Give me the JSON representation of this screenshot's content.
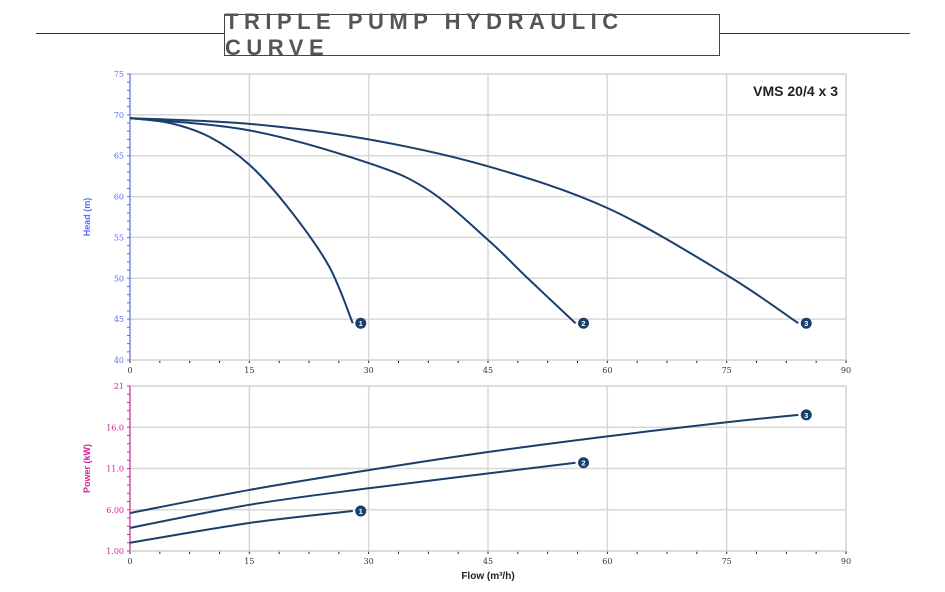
{
  "title": "TRIPLE PUMP HYDRAULIC CURVE",
  "colors": {
    "curve": "#1a3f6b",
    "head_axis": "#5b6cf0",
    "power_axis": "#d4209a",
    "grid": "#d8d8d8"
  },
  "chart_data": [
    {
      "type": "line",
      "title": "VMS 20/4 x 3",
      "xlabel": "",
      "ylabel": "Head (m)",
      "xlim": [
        0,
        90
      ],
      "ylim": [
        40,
        75
      ],
      "xticks": [
        "0",
        "15",
        "30",
        "45",
        "60",
        "75",
        "90"
      ],
      "yticks": [
        "40",
        "45",
        "50",
        "55",
        "60",
        "65",
        "70",
        "75"
      ],
      "grid": true,
      "series": [
        {
          "name": "1",
          "x": [
            0,
            5,
            10,
            15,
            20,
            25,
            28
          ],
          "y": [
            69.6,
            69.0,
            67.3,
            63.9,
            58.5,
            51.5,
            44.5
          ]
        },
        {
          "name": "2",
          "x": [
            0,
            15,
            30,
            37.5,
            45,
            50,
            56
          ],
          "y": [
            69.6,
            68.1,
            64.1,
            60.8,
            54.7,
            50.0,
            44.5
          ]
        },
        {
          "name": "3",
          "x": [
            0,
            15,
            30,
            45,
            60,
            75,
            84
          ],
          "y": [
            69.6,
            68.9,
            67.0,
            63.7,
            58.6,
            50.4,
            44.5
          ]
        }
      ]
    },
    {
      "type": "line",
      "xlabel": "Flow (m³/h)",
      "ylabel": "Power (kW)",
      "xlim": [
        0,
        90
      ],
      "ylim": [
        1,
        21
      ],
      "xticks": [
        "0",
        "15",
        "30",
        "45",
        "60",
        "75",
        "90"
      ],
      "yticks": [
        "1.00",
        "6.00",
        "11.0",
        "16.0",
        "21"
      ],
      "grid": true,
      "series": [
        {
          "name": "1",
          "x": [
            0,
            15,
            28
          ],
          "y": [
            2.0,
            4.4,
            5.85
          ]
        },
        {
          "name": "2",
          "x": [
            0,
            15,
            30,
            56
          ],
          "y": [
            3.8,
            6.6,
            8.6,
            11.7
          ]
        },
        {
          "name": "3",
          "x": [
            0,
            15,
            30,
            45,
            60,
            75,
            84
          ],
          "y": [
            5.6,
            8.4,
            10.8,
            13.0,
            14.9,
            16.6,
            17.5
          ]
        }
      ]
    }
  ]
}
